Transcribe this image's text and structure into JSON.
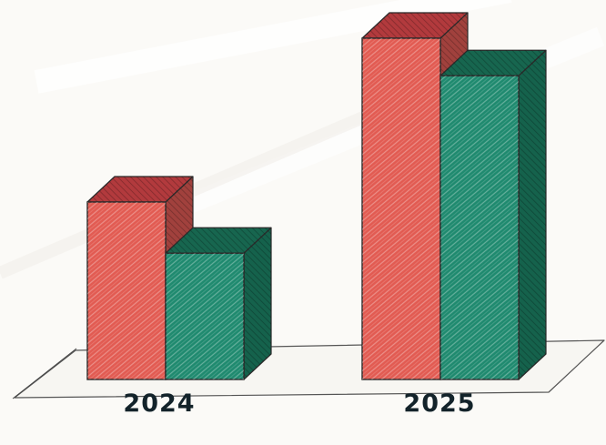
{
  "chart_data": {
    "type": "bar",
    "style": "hand-drawn 3D bars on a sketched platform",
    "categories": [
      "2024",
      "2025"
    ],
    "series": [
      {
        "color": "#e25b52",
        "top_color": "#b23a3d",
        "side_color": "#a1413d",
        "values": [
          52,
          100
        ]
      },
      {
        "color": "#1f8a6f",
        "top_color": "#17664f",
        "side_color": "#15624c",
        "values": [
          37,
          89
        ]
      }
    ],
    "grid": false,
    "legend": "none"
  }
}
